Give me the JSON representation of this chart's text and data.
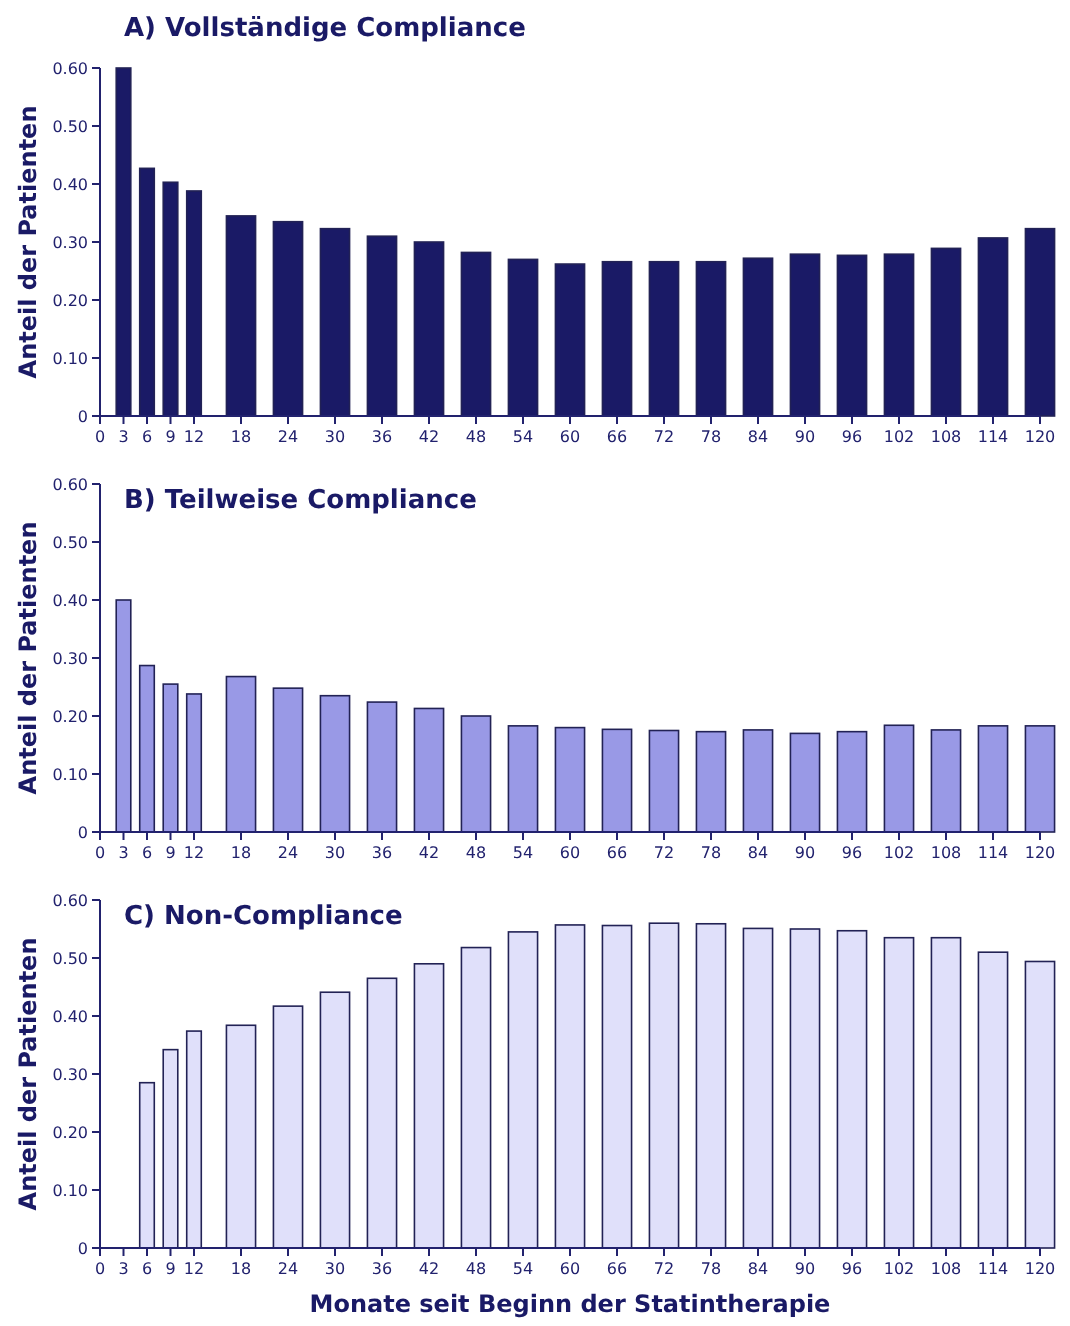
{
  "chart_data": [
    {
      "type": "bar",
      "title": "A) Vollständige Compliance",
      "ylabel": "Anteil der Patienten",
      "x": [
        3,
        6,
        9,
        12,
        18,
        24,
        30,
        36,
        42,
        48,
        54,
        60,
        66,
        72,
        78,
        84,
        90,
        96,
        102,
        108,
        114,
        120
      ],
      "values": [
        0.6,
        0.427,
        0.403,
        0.388,
        0.345,
        0.335,
        0.323,
        0.31,
        0.3,
        0.282,
        0.27,
        0.262,
        0.266,
        0.266,
        0.266,
        0.272,
        0.279,
        0.277,
        0.279,
        0.289,
        0.307,
        0.323
      ],
      "color": "#1a1a66",
      "xlim": [
        0,
        120
      ],
      "xticks": [
        0,
        3,
        6,
        9,
        12,
        18,
        24,
        30,
        36,
        42,
        48,
        54,
        60,
        66,
        72,
        78,
        84,
        90,
        96,
        102,
        108,
        114,
        120
      ],
      "ylim": [
        0,
        0.6
      ],
      "yticks": [
        {
          "value": 0,
          "label": "0"
        },
        {
          "value": 0.1,
          "label": "0.10"
        },
        {
          "value": 0.2,
          "label": "0.20"
        },
        {
          "value": 0.3,
          "label": "0.30"
        },
        {
          "value": 0.4,
          "label": "0.40"
        },
        {
          "value": 0.5,
          "label": "0.50"
        },
        {
          "value": 0.6,
          "label": "0.60"
        }
      ]
    },
    {
      "type": "bar",
      "title": "B) Teilweise Compliance",
      "ylabel": "Anteil der Patienten",
      "x": [
        3,
        6,
        9,
        12,
        18,
        24,
        30,
        36,
        42,
        48,
        54,
        60,
        66,
        72,
        78,
        84,
        90,
        96,
        102,
        108,
        114,
        120
      ],
      "values": [
        0.4,
        0.287,
        0.255,
        0.238,
        0.268,
        0.248,
        0.235,
        0.224,
        0.213,
        0.2,
        0.183,
        0.18,
        0.177,
        0.175,
        0.173,
        0.176,
        0.17,
        0.173,
        0.184,
        0.176,
        0.183,
        0.183
      ],
      "color": "#9999e6",
      "xlim": [
        0,
        120
      ],
      "xticks": [
        0,
        3,
        6,
        9,
        12,
        18,
        24,
        30,
        36,
        42,
        48,
        54,
        60,
        66,
        72,
        78,
        84,
        90,
        96,
        102,
        108,
        114,
        120
      ],
      "ylim": [
        0,
        0.6
      ],
      "yticks": [
        {
          "value": 0,
          "label": "0"
        },
        {
          "value": 0.1,
          "label": "0.10"
        },
        {
          "value": 0.2,
          "label": "0.20"
        },
        {
          "value": 0.3,
          "label": "0.30"
        },
        {
          "value": 0.4,
          "label": "0.40"
        },
        {
          "value": 0.5,
          "label": "0.50"
        },
        {
          "value": 0.6,
          "label": "0.60"
        }
      ]
    },
    {
      "type": "bar",
      "title": "C) Non-Compliance",
      "ylabel": "Anteil der Patienten",
      "xlabel": "Monate seit Beginn der Statintherapie",
      "x": [
        3,
        6,
        9,
        12,
        18,
        24,
        30,
        36,
        42,
        48,
        54,
        60,
        66,
        72,
        78,
        84,
        90,
        96,
        102,
        108,
        114,
        120
      ],
      "values": [
        0,
        0.285,
        0.342,
        0.374,
        0.384,
        0.417,
        0.441,
        0.465,
        0.49,
        0.518,
        0.545,
        0.557,
        0.556,
        0.56,
        0.559,
        0.551,
        0.55,
        0.547,
        0.535,
        0.535,
        0.51,
        0.494
      ],
      "color": "#e0e0fa",
      "xlim": [
        0,
        120
      ],
      "xticks": [
        0,
        3,
        6,
        9,
        12,
        18,
        24,
        30,
        36,
        42,
        48,
        54,
        60,
        66,
        72,
        78,
        84,
        90,
        96,
        102,
        108,
        114,
        120
      ],
      "ylim": [
        0,
        0.6
      ],
      "yticks": [
        {
          "value": 0,
          "label": "0"
        },
        {
          "value": 0.1,
          "label": "0.10"
        },
        {
          "value": 0.2,
          "label": "0.20"
        },
        {
          "value": 0.3,
          "label": "0.30"
        },
        {
          "value": 0.4,
          "label": "0.40"
        },
        {
          "value": 0.5,
          "label": "0.50"
        },
        {
          "value": 0.6,
          "label": "0.60"
        }
      ]
    }
  ]
}
